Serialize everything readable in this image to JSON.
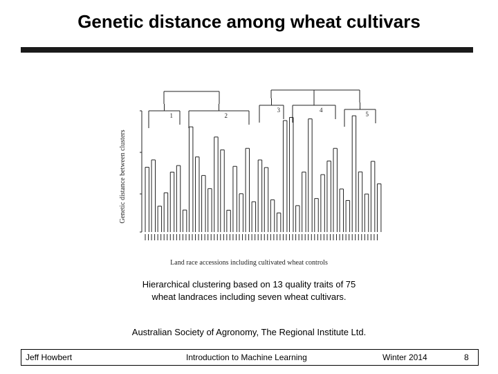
{
  "slide": {
    "title": "Genetic distance among wheat cultivars",
    "caption_line1": "Hierarchical clustering based on 13 quality traits of 75",
    "caption_line2": "wheat landraces including seven wheat cultivars.",
    "source": "Australian Society of Agronomy, The Regional Institute Ltd."
  },
  "figure": {
    "ylabel": "Genetic distance between clusters",
    "xlabel": "Land race accessions including cultivated wheat controls",
    "cluster_labels": [
      "1",
      "2",
      "3",
      "4",
      "5"
    ],
    "leaf_count": 75
  },
  "footer": {
    "author": "Jeff Howbert",
    "course": "Introduction to Machine Learning",
    "term": "Winter 2014",
    "page": "8"
  }
}
